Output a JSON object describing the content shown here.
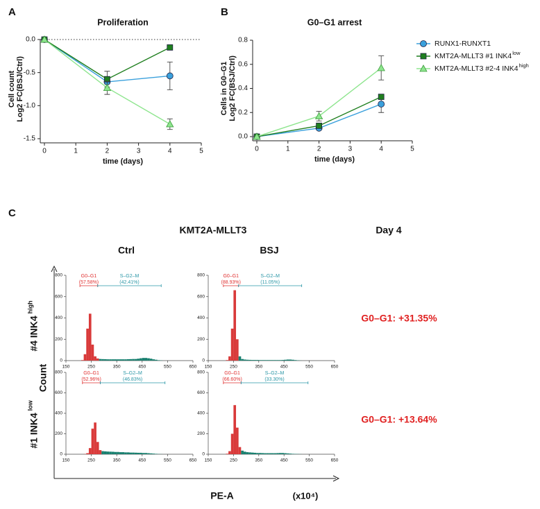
{
  "chart_data": [
    {
      "type": "line",
      "panel": "A",
      "title": "Proliferation",
      "y_label": [
        "Cell count",
        "Log2 FC(BSJ/Ctrl)"
      ],
      "x_label": "time (days)",
      "x": [
        0,
        2,
        4
      ],
      "series": [
        {
          "color": "#3aa0dc",
          "marker": "circle",
          "values": [
            0,
            -0.64,
            -0.55
          ],
          "errors": [
            0,
            0.03,
            0.21
          ]
        },
        {
          "color": "#1f7f1f",
          "marker": "square",
          "values": [
            0,
            -0.6,
            -0.12
          ],
          "errors": [
            0,
            0.12,
            0.02
          ]
        },
        {
          "color": "#8ee58e",
          "marker": "triangle",
          "values": [
            0,
            -0.73,
            -1.28
          ],
          "errors": [
            0,
            0.1,
            0.08
          ]
        }
      ],
      "xlim": [
        0,
        5
      ],
      "xticks": [
        0,
        1,
        2,
        3,
        4,
        5
      ],
      "ylim": [
        -1.5,
        0
      ],
      "yticks": [
        {
          "value": 0,
          "label": "0.0"
        },
        {
          "value": -0.5,
          "label": "-0.5"
        },
        {
          "value": -1,
          "label": "-1.0"
        },
        {
          "value": -1.5,
          "label": "-1.5"
        }
      ],
      "reference_line": 0
    },
    {
      "type": "line",
      "panel": "B",
      "title": "G0–G1 arrest",
      "y_label": [
        "Cells in G0–G1",
        "Log2 FC(BSJ/Ctrl)"
      ],
      "x_label": "time (days)",
      "x": [
        0,
        2,
        4
      ],
      "series": [
        {
          "name": "RUNX1-RUNXT1",
          "color": "#3aa0dc",
          "marker": "circle",
          "values": [
            0,
            0.07,
            0.27
          ],
          "errors": [
            0,
            0.01,
            0.07
          ]
        },
        {
          "name": "KMT2A-MLLT3 #1 INK4",
          "name_sup": "low",
          "color": "#1f7f1f",
          "marker": "square",
          "values": [
            0,
            0.09,
            0.33
          ],
          "errors": [
            0,
            0.01,
            0.02
          ]
        },
        {
          "name": "KMT2A-MLLT3 #2-4 INK4",
          "name_sup": "high",
          "color": "#8ee58e",
          "marker": "triangle",
          "values": [
            0,
            0.17,
            0.57
          ],
          "errors": [
            0,
            0.04,
            0.1
          ]
        }
      ],
      "xlim": [
        0,
        5
      ],
      "xticks": [
        0,
        1,
        2,
        3,
        4,
        5
      ],
      "ylim": [
        0,
        0.8
      ],
      "yticks": [
        {
          "value": 0,
          "label": "0.0"
        },
        {
          "value": 0.2,
          "label": "0.2"
        },
        {
          "value": 0.4,
          "label": "0.4"
        },
        {
          "value": 0.6,
          "label": "0.6"
        },
        {
          "value": 0.8,
          "label": "0.8"
        }
      ],
      "legend": "right"
    },
    {
      "type": "histogram",
      "bins": [
        200,
        210,
        220,
        230,
        240,
        250,
        260,
        270,
        280,
        290,
        300,
        310,
        320,
        330,
        340,
        350,
        360,
        370,
        380,
        390,
        400,
        410,
        420,
        430,
        440,
        450,
        460,
        470,
        480,
        490,
        500,
        510,
        520,
        530,
        540,
        550
      ],
      "counts": [
        0,
        5,
        60,
        300,
        440,
        150,
        40,
        20,
        15,
        14,
        13,
        12,
        12,
        12,
        12,
        12,
        12,
        12,
        12,
        13,
        14,
        15,
        15,
        18,
        22,
        25,
        25,
        22,
        18,
        12,
        8,
        4,
        2,
        0,
        0
      ],
      "colors": [
        "#d93a3a",
        "#1a8070"
      ],
      "xlim": [
        150,
        650
      ],
      "xticks": [
        150,
        250,
        350,
        450,
        550,
        650
      ],
      "ylim": [
        0,
        800
      ],
      "yticks": [
        0,
        200,
        400,
        600,
        800
      ],
      "gates": [
        {
          "name": "G0–G1",
          "label": "(57.58%)",
          "range": [
            205,
            275
          ],
          "color": "#e03030"
        },
        {
          "name": "S–G2–M",
          "label": "(42.41%)",
          "range": [
            275,
            525
          ],
          "color": "#2a96a6"
        }
      ]
    },
    {
      "type": "histogram",
      "bins": [
        200,
        210,
        220,
        230,
        240,
        250,
        260,
        270,
        280,
        290,
        300,
        310,
        320,
        330,
        340,
        350,
        360,
        370,
        380,
        390,
        400,
        410,
        420,
        430,
        440,
        450,
        460,
        470,
        480,
        490,
        500,
        510,
        520,
        530,
        540,
        550
      ],
      "counts": [
        0,
        0,
        5,
        40,
        300,
        660,
        200,
        40,
        15,
        10,
        8,
        7,
        6,
        6,
        6,
        5,
        5,
        5,
        5,
        5,
        5,
        5,
        5,
        5,
        6,
        8,
        10,
        10,
        8,
        5,
        3,
        1,
        0,
        0,
        0
      ],
      "colors": [
        "#d93a3a",
        "#1a8070"
      ],
      "xlim": [
        150,
        650
      ],
      "xticks": [
        150,
        250,
        350,
        450,
        550,
        650
      ],
      "ylim": [
        0,
        800
      ],
      "yticks": [
        0,
        200,
        400,
        600,
        800
      ],
      "gates": [
        {
          "name": "G0–G1",
          "label": "(88.93%)",
          "range": [
            210,
            270
          ],
          "color": "#e03030"
        },
        {
          "name": "S–G2–M",
          "label": "(11.05%)",
          "range": [
            270,
            520
          ],
          "color": "#2a96a6"
        }
      ]
    },
    {
      "type": "histogram",
      "bins": [
        200,
        210,
        220,
        230,
        240,
        250,
        260,
        270,
        280,
        290,
        300,
        310,
        320,
        330,
        340,
        350,
        360,
        370,
        380,
        390,
        400,
        410,
        420,
        430,
        440,
        450,
        460,
        470,
        480,
        490,
        500,
        510,
        520,
        530,
        540,
        550
      ],
      "counts": [
        0,
        0,
        2,
        10,
        60,
        250,
        310,
        120,
        40,
        30,
        28,
        26,
        25,
        24,
        22,
        22,
        20,
        20,
        18,
        18,
        16,
        16,
        15,
        14,
        14,
        12,
        12,
        10,
        8,
        6,
        4,
        2,
        1,
        0,
        0
      ],
      "colors": [
        "#d93a3a",
        "#1a8070"
      ],
      "xlim": [
        150,
        650
      ],
      "xticks": [
        150,
        250,
        350,
        450,
        550,
        650
      ],
      "ylim": [
        0,
        800
      ],
      "yticks": [
        0,
        200,
        400,
        600,
        800
      ],
      "gates": [
        {
          "name": "G0–G1",
          "label": "(52.96%)",
          "range": [
            215,
            285
          ],
          "color": "#e03030"
        },
        {
          "name": "S–G2–M",
          "label": "(46.83%)",
          "range": [
            285,
            540
          ],
          "color": "#2a96a6"
        }
      ]
    },
    {
      "type": "histogram",
      "bins": [
        200,
        210,
        220,
        230,
        240,
        250,
        260,
        270,
        280,
        290,
        300,
        310,
        320,
        330,
        340,
        350,
        360,
        370,
        380,
        390,
        400,
        410,
        420,
        430,
        440,
        450,
        460,
        470,
        480,
        490,
        500,
        510,
        520,
        530,
        540,
        550
      ],
      "counts": [
        0,
        0,
        5,
        30,
        200,
        480,
        260,
        70,
        35,
        25,
        20,
        18,
        16,
        14,
        12,
        12,
        11,
        10,
        10,
        10,
        10,
        10,
        11,
        12,
        12,
        10,
        8,
        6,
        4,
        3,
        2,
        1,
        0,
        0,
        0
      ],
      "colors": [
        "#d93a3a",
        "#1a8070"
      ],
      "xlim": [
        150,
        650
      ],
      "xticks": [
        150,
        250,
        350,
        450,
        550,
        650
      ],
      "ylim": [
        0,
        800
      ],
      "yticks": [
        0,
        200,
        400,
        600,
        800
      ],
      "gates": [
        {
          "name": "G0–G1",
          "label": "(66.60%)",
          "range": [
            210,
            280
          ],
          "color": "#e03030"
        },
        {
          "name": "S–G2–M",
          "label": "(33.30%)",
          "range": [
            280,
            545
          ],
          "color": "#2a96a6"
        }
      ]
    }
  ],
  "panel_c": {
    "panel": "C",
    "title": "KMT2A-MLLT3",
    "day": "Day 4",
    "columns": [
      "Ctrl",
      "BSJ"
    ],
    "rows": [
      {
        "name": "#4 INK4",
        "sup": "high"
      },
      {
        "name": "#1 INK4",
        "sup": "low"
      }
    ],
    "changes": [
      "G0–G1: +31.35%",
      "G0–G1: +13.64%"
    ],
    "y_label": "Count",
    "x_label": "PE-A",
    "x_unit": "(x10⁴)"
  }
}
